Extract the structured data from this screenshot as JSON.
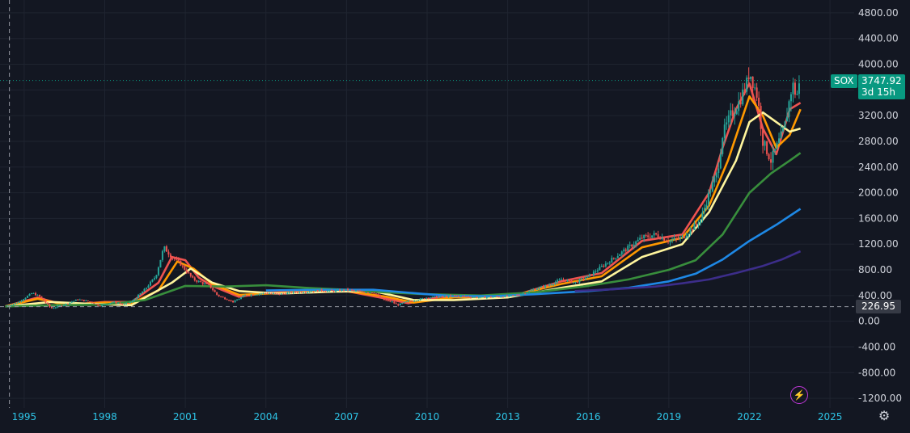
{
  "chart_data": {
    "type": "candlestick",
    "symbol": "SOX",
    "last_price": "3747.92",
    "countdown": "3d 15h",
    "crosshair_price": "226.95",
    "crosshair_value": 226.95,
    "y_ticks": [
      "4800.00",
      "4400.00",
      "4000.00",
      "3600.00",
      "3200.00",
      "2800.00",
      "2400.00",
      "2000.00",
      "1600.00",
      "1200.00",
      "800.00",
      "400.00",
      "0.00",
      "-400.00",
      "-800.00",
      "-1200.00"
    ],
    "y_tick_values": [
      4800,
      4400,
      4000,
      3600,
      3200,
      2800,
      2400,
      2000,
      1600,
      1200,
      800,
      400,
      0,
      -400,
      -800,
      -1200
    ],
    "x_ticks": [
      "1995",
      "1998",
      "2001",
      "2004",
      "2007",
      "2010",
      "2013",
      "2016",
      "2019",
      "2022",
      "2025"
    ],
    "x_tick_values": [
      1995,
      1998,
      2001,
      2004,
      2007,
      2010,
      2013,
      2016,
      2019,
      2022,
      2025
    ],
    "ylim": [
      -1350,
      5000
    ],
    "xlim": [
      1994.1,
      2025.9
    ],
    "grid": true,
    "colors": {
      "up": "#26a69a",
      "down": "#ef5350",
      "last_price": "#089981",
      "background": "#131722"
    },
    "price": {
      "x": [
        1994.3,
        1994.8,
        1995.3,
        1995.6,
        1996.0,
        1996.5,
        1997.0,
        1997.5,
        1997.8,
        1998.3,
        1998.7,
        1999.0,
        1999.5,
        1999.9,
        2000.2,
        2000.5,
        2000.8,
        2001.0,
        2001.3,
        2001.6,
        2001.9,
        2002.2,
        2002.5,
        2002.8,
        2003.2,
        2003.6,
        2004.0,
        2004.5,
        2005.0,
        2005.5,
        2006.0,
        2006.5,
        2007.0,
        2007.5,
        2008.0,
        2008.4,
        2008.7,
        2008.9,
        2009.2,
        2009.6,
        2010.0,
        2010.5,
        2011.0,
        2011.5,
        2012.0,
        2012.5,
        2013.0,
        2013.5,
        2014.0,
        2014.5,
        2015.0,
        2015.5,
        2016.0,
        2016.5,
        2017.0,
        2017.5,
        2018.0,
        2018.5,
        2019.0,
        2019.5,
        2020.0,
        2020.2,
        2020.5,
        2020.8,
        2021.0,
        2021.3,
        2021.6,
        2021.9,
        2022.0,
        2022.3,
        2022.5,
        2022.8,
        2023.0,
        2023.3,
        2023.6,
        2023.75,
        2023.9
      ],
      "y": [
        230,
        300,
        440,
        380,
        200,
        260,
        340,
        300,
        240,
        300,
        260,
        300,
        500,
        700,
        1150,
        1000,
        900,
        800,
        650,
        600,
        550,
        400,
        350,
        300,
        400,
        420,
        440,
        420,
        450,
        460,
        480,
        470,
        490,
        460,
        450,
        330,
        300,
        250,
        300,
        330,
        370,
        380,
        400,
        380,
        370,
        380,
        390,
        420,
        500,
        560,
        650,
        600,
        700,
        850,
        1000,
        1150,
        1300,
        1350,
        1250,
        1300,
        1500,
        1600,
        2000,
        2300,
        2900,
        3200,
        3400,
        3700,
        3900,
        3500,
        2800,
        2500,
        2700,
        3000,
        3700,
        3500,
        3747.92
      ]
    },
    "moving_averages": [
      {
        "color": "#ef5350",
        "x": [
          1994.3,
          1995.5,
          1996.5,
          1998.0,
          1999.0,
          2000.0,
          2000.5,
          2001.0,
          2001.5,
          2002.0,
          2003.0,
          2004.0,
          2005.0,
          2007.0,
          2008.5,
          2009.3,
          2010.5,
          2012.0,
          2013.5,
          2015.0,
          2016.5,
          2018.0,
          2019.5,
          2020.5,
          2021.0,
          2021.5,
          2022.0,
          2022.5,
          2023.0,
          2023.5,
          2023.9
        ],
        "y": [
          230,
          370,
          250,
          300,
          300,
          600,
          1000,
          950,
          680,
          550,
          380,
          440,
          460,
          470,
          350,
          280,
          380,
          380,
          430,
          620,
          750,
          1250,
          1350,
          2000,
          2700,
          3300,
          3700,
          3000,
          2600,
          3300,
          3400
        ]
      },
      {
        "color": "#ff9800",
        "x": [
          1994.3,
          1995.5,
          1996.5,
          1998.0,
          1999.0,
          2000.0,
          2000.7,
          2001.3,
          2002.0,
          2003.0,
          2004.0,
          2005.0,
          2007.0,
          2008.5,
          2009.5,
          2011.0,
          2013.0,
          2015.0,
          2016.5,
          2018.0,
          2019.5,
          2020.5,
          2021.2,
          2022.0,
          2022.5,
          2023.0,
          2023.5,
          2023.9
        ],
        "y": [
          230,
          350,
          260,
          290,
          280,
          480,
          930,
          820,
          580,
          410,
          430,
          450,
          470,
          380,
          290,
          370,
          380,
          580,
          700,
          1150,
          1300,
          1800,
          2500,
          3500,
          3200,
          2700,
          2900,
          3300
        ]
      },
      {
        "color": "#fff59d",
        "x": [
          1994.3,
          1996.0,
          1997.5,
          1999.0,
          2000.5,
          2001.2,
          2002.0,
          2003.0,
          2004.5,
          2006.5,
          2008.0,
          2009.5,
          2011.0,
          2013.0,
          2015.0,
          2016.5,
          2018.0,
          2019.5,
          2020.5,
          2021.5,
          2022.0,
          2022.5,
          2023.0,
          2023.5,
          2023.9
        ],
        "y": [
          230,
          300,
          270,
          250,
          600,
          820,
          600,
          470,
          430,
          460,
          470,
          330,
          330,
          370,
          520,
          620,
          1000,
          1200,
          1700,
          2500,
          3100,
          3250,
          3100,
          2950,
          3000
        ]
      },
      {
        "color": "#388e3c",
        "x": [
          1994.3,
          1996.0,
          1998.0,
          1999.5,
          2001.0,
          2002.5,
          2004.0,
          2005.5,
          2007.0,
          2008.5,
          2010.0,
          2012.0,
          2014.0,
          2016.0,
          2017.5,
          2019.0,
          2020.0,
          2021.0,
          2022.0,
          2022.8,
          2023.5,
          2023.9
        ],
        "y": [
          230,
          250,
          260,
          330,
          550,
          540,
          560,
          520,
          490,
          450,
          420,
          400,
          450,
          550,
          650,
          800,
          950,
          1350,
          2000,
          2300,
          2500,
          2620
        ]
      },
      {
        "color": "#1e88e5",
        "x": [
          2004.0,
          2006.0,
          2008.0,
          2010.0,
          2011.0,
          2012.5,
          2014.0,
          2016.0,
          2017.5,
          2019.0,
          2020.0,
          2021.0,
          2022.0,
          2023.0,
          2023.9
        ],
        "y": [
          480,
          490,
          490,
          420,
          390,
          390,
          420,
          470,
          520,
          620,
          740,
          960,
          1250,
          1500,
          1750
        ]
      },
      {
        "color": "#3c2d8a",
        "x": [
          2015.5,
          2017.0,
          2018.5,
          2019.5,
          2020.5,
          2021.5,
          2022.5,
          2023.2,
          2023.9
        ],
        "y": [
          470,
          500,
          540,
          590,
          650,
          750,
          860,
          960,
          1090
        ]
      }
    ]
  },
  "icons": {
    "bolt": "lightning-icon",
    "settings": "gear-icon"
  }
}
